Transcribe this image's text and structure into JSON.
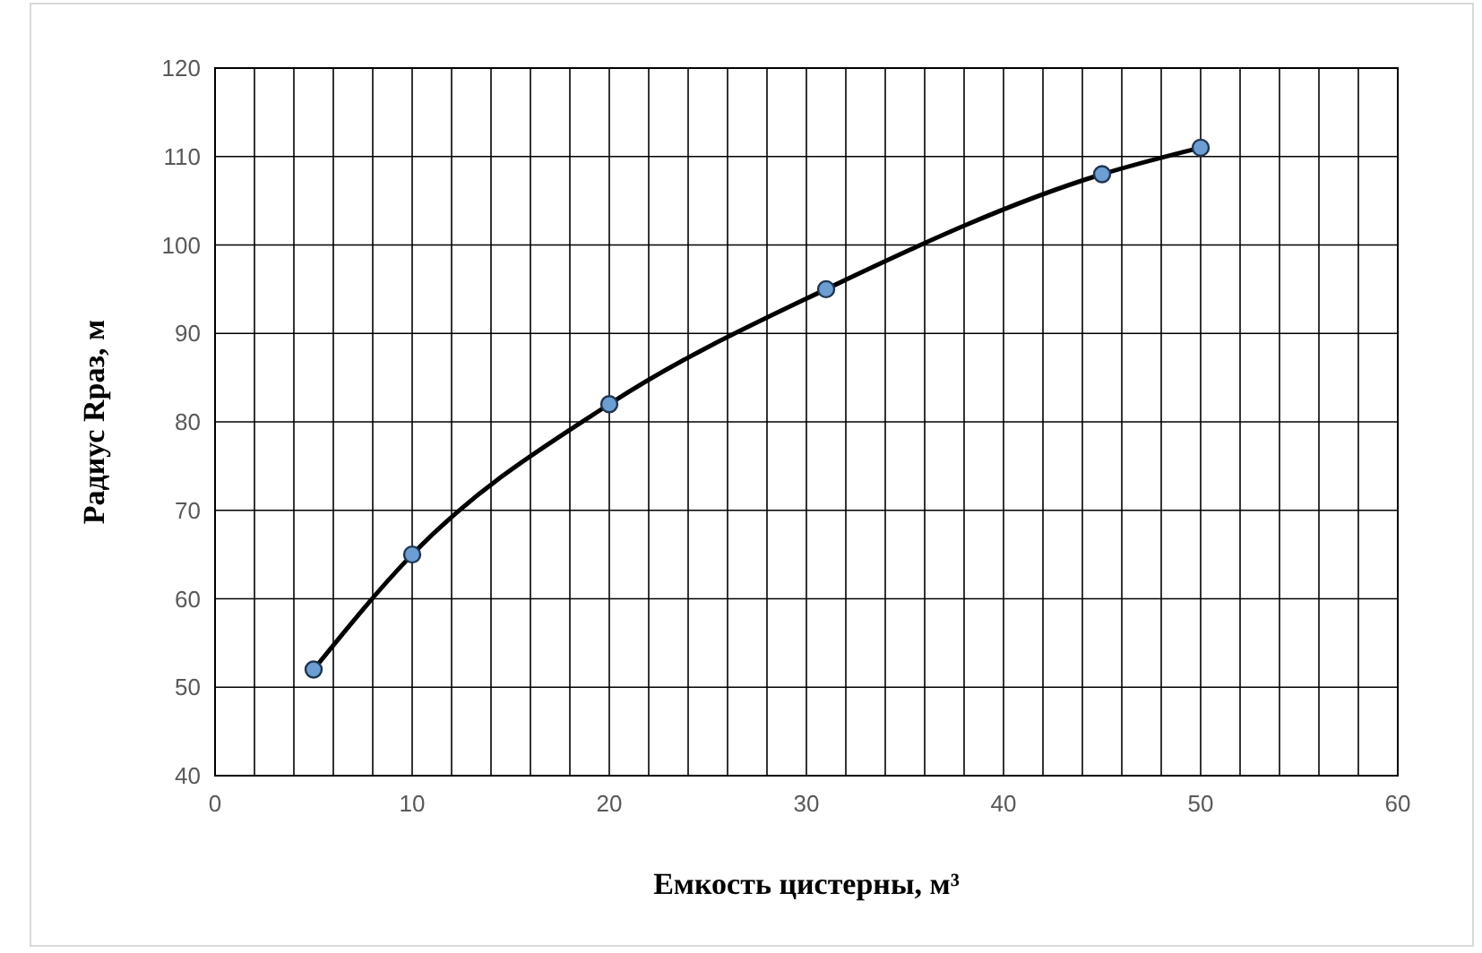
{
  "chart_data": {
    "type": "line",
    "xlabel": "Емкость цистерны, м³",
    "ylabel": "Радиус Rраз, м",
    "series": [
      {
        "color": "#000000",
        "x": [
          5,
          10,
          20,
          31,
          45,
          50
        ],
        "values": [
          52,
          65,
          82,
          95,
          108,
          111
        ]
      }
    ],
    "xlim": [
      0,
      60
    ],
    "xticks": [
      0,
      {
        "value": 2,
        "label": null
      },
      {
        "value": 4,
        "label": null
      },
      {
        "value": 6,
        "label": null
      },
      {
        "value": 8,
        "label": null
      },
      10,
      {
        "value": 12,
        "label": null
      },
      {
        "value": 14,
        "label": null
      },
      {
        "value": 16,
        "label": null
      },
      {
        "value": 18,
        "label": null
      },
      20,
      {
        "value": 22,
        "label": null
      },
      {
        "value": 24,
        "label": null
      },
      {
        "value": 26,
        "label": null
      },
      {
        "value": 28,
        "label": null
      },
      30,
      {
        "value": 32,
        "label": null
      },
      {
        "value": 34,
        "label": null
      },
      {
        "value": 36,
        "label": null
      },
      {
        "value": 38,
        "label": null
      },
      40,
      {
        "value": 42,
        "label": null
      },
      {
        "value": 44,
        "label": null
      },
      {
        "value": 46,
        "label": null
      },
      {
        "value": 48,
        "label": null
      },
      50,
      {
        "value": 52,
        "label": null
      },
      {
        "value": 54,
        "label": null
      },
      {
        "value": 56,
        "label": null
      },
      {
        "value": 58,
        "label": null
      },
      60
    ],
    "ylim": [
      40,
      120
    ],
    "yticks": [
      40,
      50,
      60,
      70,
      80,
      90,
      100,
      110,
      120
    ],
    "grid": true,
    "marker": "circle",
    "line_style": "solid"
  }
}
